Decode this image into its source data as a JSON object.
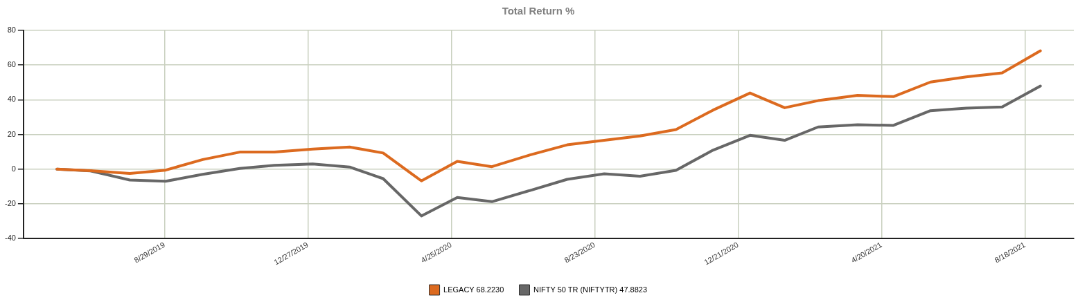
{
  "chart_data": {
    "type": "line",
    "title": "Total Return %",
    "x": [
      "2019-05-31",
      "2019-06-28",
      "2019-07-31",
      "2019-08-30",
      "2019-09-30",
      "2019-10-31",
      "2019-11-29",
      "2019-12-31",
      "2020-01-31",
      "2020-02-28",
      "2020-03-31",
      "2020-04-30",
      "2020-05-29",
      "2020-06-30",
      "2020-07-31",
      "2020-08-31",
      "2020-09-30",
      "2020-10-30",
      "2020-11-30",
      "2020-12-31",
      "2021-01-29",
      "2021-02-26",
      "2021-03-31",
      "2021-04-30",
      "2021-05-31",
      "2021-06-30",
      "2021-07-30",
      "2021-08-31"
    ],
    "series": [
      {
        "name": "LEGACY 68.2230",
        "color": "#dc6a1f",
        "values": [
          0,
          -0.9,
          -2.5,
          -0.6,
          5.5,
          9.8,
          9.8,
          11.5,
          12.7,
          9.3,
          -6.8,
          4.5,
          1.4,
          8.2,
          14,
          16.6,
          19.1,
          22.8,
          34,
          43.9,
          35.4,
          39.5,
          42.5,
          41.8,
          50.2,
          53.2,
          55.5,
          68.2
        ]
      },
      {
        "name": "NIFTY 50 TR (NIFTYTR) 47.8823",
        "color": "#676767",
        "values": [
          0,
          -1,
          -6.3,
          -7,
          -3,
          0.4,
          2.2,
          3,
          1.2,
          -5.5,
          -27,
          -16.4,
          -18.8,
          -12.3,
          -5.9,
          -2.7,
          -4.1,
          -0.7,
          10.9,
          19.5,
          16.6,
          24.3,
          25.6,
          25.2,
          33.7,
          35.2,
          35.9,
          47.9
        ]
      }
    ],
    "xlim": [
      "2019-05-03",
      "2021-09-28"
    ],
    "xticks": [
      {
        "value": "2019-08-29",
        "label": "8/29/2019"
      },
      {
        "value": "2019-12-27",
        "label": "12/27/2019"
      },
      {
        "value": "2020-04-25",
        "label": "4/25/2020"
      },
      {
        "value": "2020-08-23",
        "label": "8/23/2020"
      },
      {
        "value": "2020-12-21",
        "label": "12/21/2020"
      },
      {
        "value": "2021-04-20",
        "label": "4/20/2021"
      },
      {
        "value": "2021-08-18",
        "label": "8/18/2021"
      }
    ],
    "ylim": [
      -40,
      80
    ],
    "yticks": [
      -40,
      -20,
      0,
      20,
      40,
      60,
      80
    ],
    "grid": true,
    "legend": "bottom",
    "marker": "none",
    "line_style": "solid"
  }
}
